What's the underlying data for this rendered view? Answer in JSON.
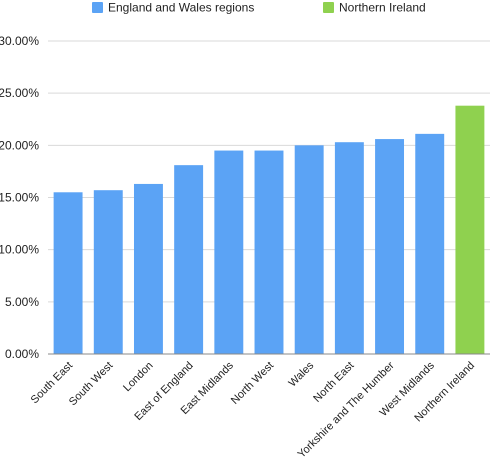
{
  "chart_data": {
    "type": "bar",
    "title": "",
    "xlabel": "",
    "ylabel": "",
    "ylim": [
      0,
      30
    ],
    "yticks": [
      0,
      5,
      10,
      15,
      20,
      25,
      30
    ],
    "ytick_labels": [
      "0.00%",
      "5.00%",
      "10.00%",
      "15.00%",
      "20.00%",
      "25.00%",
      "30.00%"
    ],
    "grid": true,
    "legend_position": "top",
    "categories": [
      "South East",
      "South West",
      "London",
      "East of England",
      "East Midlands",
      "North West",
      "Wales",
      "North East",
      "Yorkshire and The Humber",
      "West Midlands",
      "Northern Ireland"
    ],
    "series": [
      {
        "name": "England and Wales regions",
        "color": "#5ba3f5",
        "values": [
          15.5,
          15.7,
          16.3,
          18.1,
          19.5,
          19.5,
          20.0,
          20.3,
          20.6,
          21.1,
          null
        ]
      },
      {
        "name": "Northern Ireland",
        "color": "#8fd14f",
        "values": [
          null,
          null,
          null,
          null,
          null,
          null,
          null,
          null,
          null,
          null,
          23.8
        ]
      }
    ]
  }
}
